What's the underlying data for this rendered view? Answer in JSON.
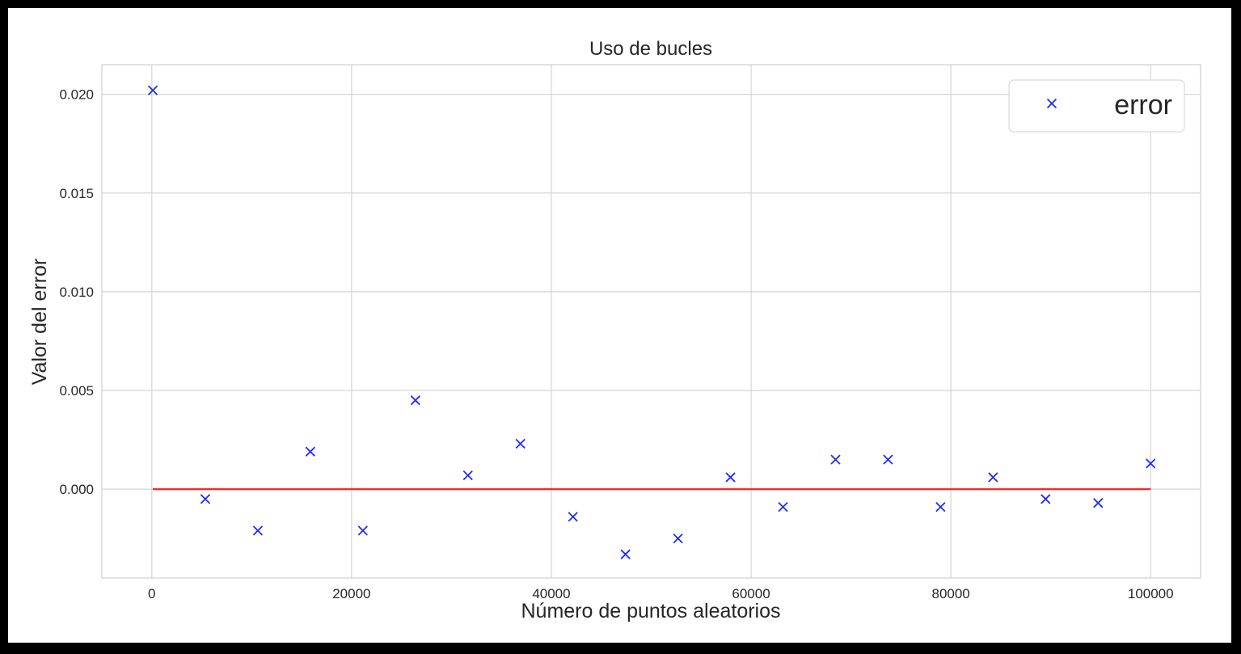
{
  "chart_data": {
    "type": "scatter",
    "title": "Uso de bucles",
    "xlabel": "Número de puntos aleatorios",
    "ylabel": "Valor del error",
    "xlim": [
      -5000,
      105000
    ],
    "ylim": [
      -0.0045,
      0.0215
    ],
    "xticks": [
      0,
      20000,
      40000,
      60000,
      80000,
      100000
    ],
    "xtick_labels": [
      "0",
      "20000",
      "40000",
      "60000",
      "80000",
      "100000"
    ],
    "yticks": [
      0.0,
      0.005,
      0.01,
      0.015,
      0.02
    ],
    "ytick_labels": [
      "0.000",
      "0.005",
      "0.010",
      "0.015",
      "0.020"
    ],
    "grid": true,
    "legend_position": "top-right",
    "series": [
      {
        "name": "error",
        "marker": "x",
        "color": "#1f2ef0",
        "x": [
          100,
          5358,
          10616,
          15874,
          21132,
          26390,
          31647,
          36905,
          42163,
          47421,
          52679,
          57937,
          63195,
          68453,
          73711,
          78968,
          84226,
          89484,
          94742,
          100000
        ],
        "y": [
          0.0202,
          -0.0005,
          -0.0021,
          0.0019,
          -0.0021,
          0.0045,
          0.0007,
          0.0023,
          -0.0014,
          -0.0033,
          -0.0025,
          0.0006,
          -0.0009,
          0.0015,
          0.0015,
          -0.0009,
          0.0006,
          -0.0005,
          -0.0007,
          0.0013
        ]
      }
    ],
    "reference_line": {
      "y": 0.0,
      "x": [
        100,
        100000
      ],
      "color": "#ff2222"
    }
  }
}
